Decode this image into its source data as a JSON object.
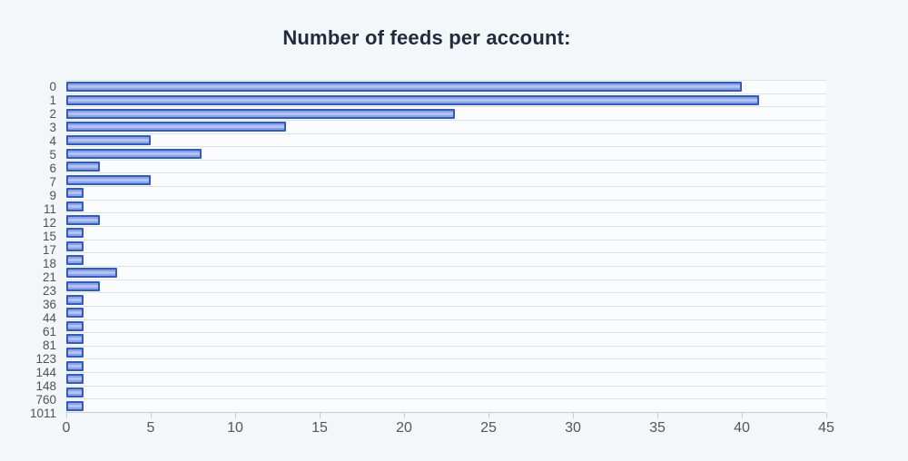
{
  "title": "Number of feeds per account:",
  "chart_data": {
    "type": "bar",
    "orientation": "horizontal",
    "title": "Number of feeds per account:",
    "xlabel": "",
    "ylabel": "",
    "categories": [
      "0",
      "1",
      "2",
      "3",
      "4",
      "5",
      "6",
      "7",
      "9",
      "11",
      "12",
      "15",
      "17",
      "18",
      "21",
      "23",
      "36",
      "44",
      "61",
      "81",
      "123",
      "144",
      "148",
      "760",
      "1011"
    ],
    "values": [
      40,
      41,
      23,
      13,
      5,
      8,
      2,
      5,
      1,
      1,
      2,
      1,
      1,
      1,
      3,
      2,
      1,
      1,
      1,
      1,
      1,
      1,
      1,
      1,
      1
    ],
    "xlim": [
      0,
      45
    ],
    "x_ticks": [
      0,
      5,
      10,
      15,
      20,
      25,
      30,
      35,
      40,
      45
    ],
    "grid": "horizontal category separators, no vertical gridlines",
    "legend": "none",
    "colors": {
      "bar_border": "#2f5bc9",
      "bar_fill": "#8ba4e5",
      "bar_highlight": "#bac8f1",
      "page_background": "#f3f7f9",
      "plot_background": "#fafcfd",
      "separator_line": "#dde2e7",
      "axis_line": "#c6ccd2",
      "tick_label_color": "#53575c",
      "category_label_color": "#4e5256",
      "title_color": "#222b3d"
    }
  }
}
